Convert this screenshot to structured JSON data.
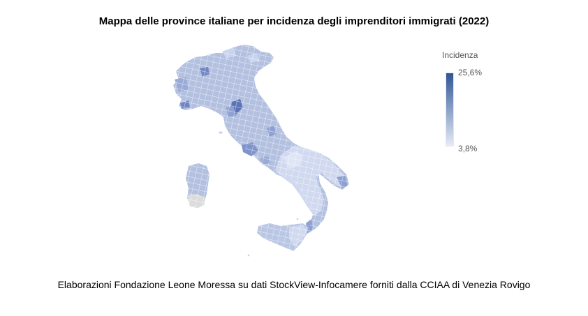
{
  "title": "Mappa delle province italiane per incidenza degli imprenditori immigrati (2022)",
  "legend": {
    "title": "Incidenza",
    "max_label": "25,6%",
    "min_label": "3,8%",
    "color_max": "#2f5597",
    "color_min": "#e6ebf7"
  },
  "map": {
    "region": "Italy",
    "unit": "provinces",
    "fill_base": "#b3c0e0",
    "fill_light": "#d6def2",
    "fill_dark": "#6f86c3",
    "fill_nodata": "#dcdcdc",
    "border": "#ffffff"
  },
  "source": "Elaborazioni Fondazione Leone Moressa su dati StockView-Infocamere forniti dalla CCIAA di Venezia Rovigo"
}
